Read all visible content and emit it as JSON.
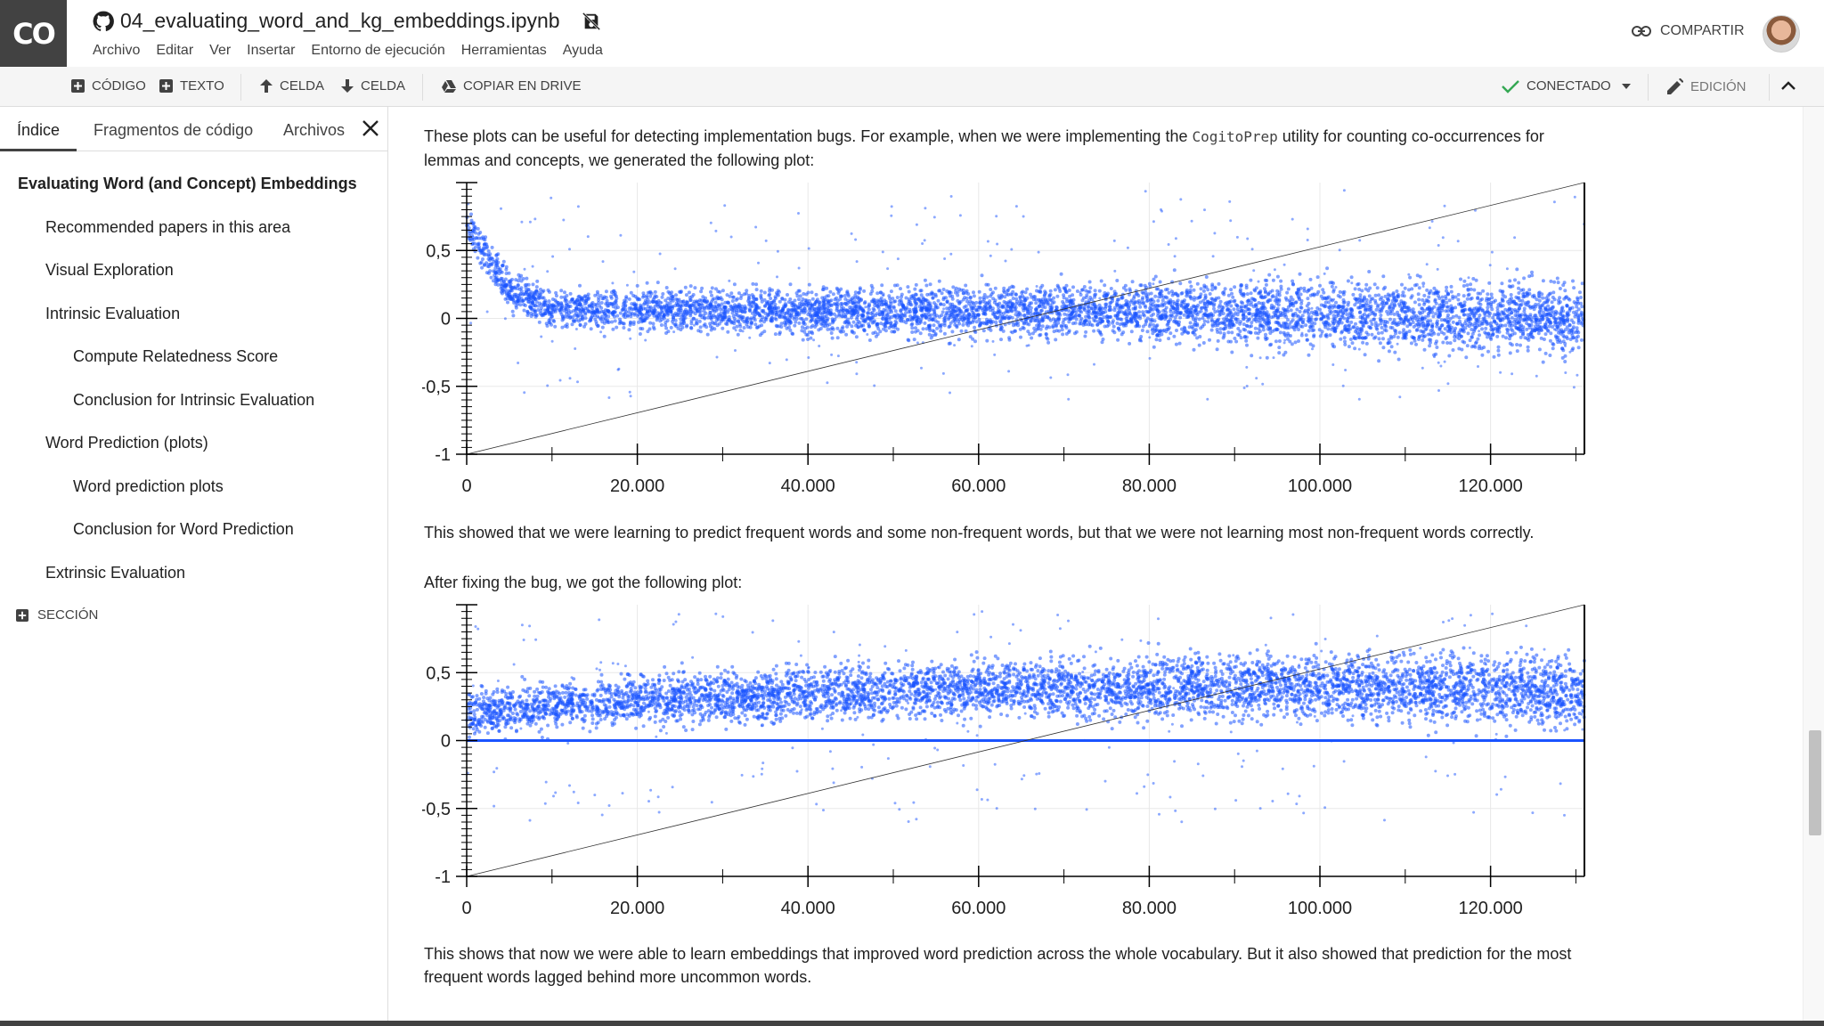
{
  "app": {
    "logo_text": "CO",
    "notebook_title": "04_evaluating_word_and_kg_embeddings.ipynb"
  },
  "menu": [
    "Archivo",
    "Editar",
    "Ver",
    "Insertar",
    "Entorno de ejecución",
    "Herramientas",
    "Ayuda"
  ],
  "header": {
    "share_label": "COMPARTIR"
  },
  "toolbar": {
    "code_label": "CÓDIGO",
    "text_label": "TEXTO",
    "cell_up_label": "CELDA",
    "cell_down_label": "CELDA",
    "copy_drive_label": "COPIAR EN DRIVE",
    "connected_label": "CONECTADO",
    "edit_label": "EDICIÓN"
  },
  "sidebar": {
    "tabs": [
      "Índice",
      "Fragmentos de código",
      "Archivos"
    ],
    "toc": [
      {
        "label": "Evaluating Word (and Concept) Embeddings",
        "level": 0
      },
      {
        "label": "Recommended papers in this area",
        "level": 1
      },
      {
        "label": "Visual Exploration",
        "level": 1
      },
      {
        "label": "Intrinsic Evaluation",
        "level": 1
      },
      {
        "label": "Compute Relatedness Score",
        "level": 2
      },
      {
        "label": "Conclusion for Intrinsic Evaluation",
        "level": 2
      },
      {
        "label": "Word Prediction (plots)",
        "level": 1
      },
      {
        "label": "Word prediction plots",
        "level": 2
      },
      {
        "label": "Conclusion for Word Prediction",
        "level": 2
      },
      {
        "label": "Extrinsic Evaluation",
        "level": 1
      }
    ],
    "section_label": "SECCIÓN"
  },
  "content": {
    "p1_before": "These plots can be useful for detecting implementation bugs. For example, when we were implementing the ",
    "p1_code": "CogitoPrep",
    "p1_after": " utility for counting co-occurrences for lemmas and concepts, we generated the following plot:",
    "p2": "This showed that we were learning to predict frequent words and some non-frequent words, but that we were not learning most non-frequent words correctly.",
    "p3": "After fixing the bug, we got the following plot:",
    "p4": "This shows that now we were able to learn embeddings that improved word prediction across the whole vocabulary. But it also showed that prediction for the most frequent words lagged behind more uncommon words."
  },
  "colors": {
    "points": "#1a53ff",
    "connected_check": "#34a853"
  },
  "chart_data": [
    {
      "type": "scatter",
      "title": "",
      "xlabel": "",
      "ylabel": "",
      "xlim": [
        0,
        131000
      ],
      "ylim": [
        -1,
        1
      ],
      "xticks": [
        "0",
        "20.000",
        "40.000",
        "60.000",
        "80.000",
        "100.000",
        "120.000"
      ],
      "yticks": [
        "-1",
        "-0,5",
        "0",
        "0,5"
      ],
      "grid": true,
      "series": [
        {
          "shape": "decreasing head then band around 0",
          "points_summary": [
            [
              0,
              0.7
            ],
            [
              5000,
              0.2
            ],
            [
              10000,
              0.08
            ],
            [
              40000,
              0.05
            ],
            [
              80000,
              0.05
            ],
            [
              130000,
              0.0
            ]
          ],
          "band_halfwidth": [
            [
              0,
              0.12
            ],
            [
              130000,
              0.25
            ]
          ]
        },
        {
          "shape": "diagonal reference line",
          "from": [
            0,
            -1
          ],
          "to": [
            131000,
            1
          ]
        }
      ]
    },
    {
      "type": "scatter",
      "title": "",
      "xlabel": "",
      "ylabel": "",
      "xlim": [
        0,
        131000
      ],
      "ylim": [
        -1,
        1
      ],
      "xticks": [
        "0",
        "20.000",
        "40.000",
        "60.000",
        "80.000",
        "100.000",
        "120.000"
      ],
      "yticks": [
        "-1",
        "-0,5",
        "0",
        "0,5"
      ],
      "grid": true,
      "series": [
        {
          "shape": "rising band with line at 0",
          "points_summary": [
            [
              0,
              0.2
            ],
            [
              20000,
              0.3
            ],
            [
              60000,
              0.38
            ],
            [
              100000,
              0.4
            ],
            [
              130000,
              0.35
            ]
          ],
          "band_halfwidth": [
            [
              0,
              0.15
            ],
            [
              130000,
              0.25
            ]
          ]
        },
        {
          "shape": "diagonal reference line",
          "from": [
            0,
            -1
          ],
          "to": [
            131000,
            1
          ]
        }
      ]
    }
  ]
}
